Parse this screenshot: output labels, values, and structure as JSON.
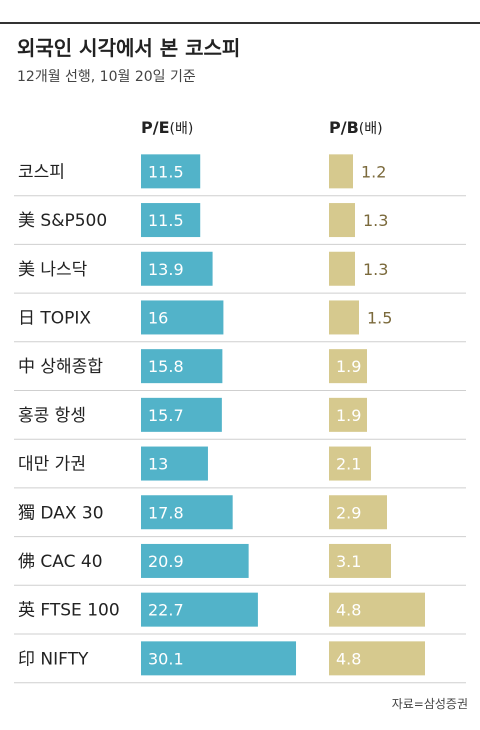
{
  "title": "외국인 시각에서 본 코스피",
  "subtitle": "12개월 선행, 10월 20일 기준",
  "source": "자료=삼성증권",
  "colors": {
    "pe": "#52b3c9",
    "pb": "#d6c98e",
    "pb_text": "#7b6a3c",
    "divider": "#cfcfcf"
  },
  "chart_data": {
    "type": "bar",
    "categories": [
      "코스피",
      "美 S&P500",
      "美 나스닥",
      "日 TOPIX",
      "中 상해종합",
      "홍콩 항셍",
      "대만 가권",
      "獨 DAX 30",
      "佛 CAC 40",
      "英 FTSE 100",
      "印 NIFTY"
    ],
    "series": [
      {
        "name": "P/E",
        "unit": "(배)",
        "values": [
          11.5,
          11.5,
          13.9,
          16,
          15.8,
          15.7,
          13,
          17.8,
          20.9,
          22.7,
          30.1
        ],
        "labels": [
          "11.5",
          "11.5",
          "13.9",
          "16",
          "15.8",
          "15.7",
          "13",
          "17.8",
          "20.9",
          "22.7",
          "30.1"
        ]
      },
      {
        "name": "P/B",
        "unit": "(배)",
        "values": [
          1.2,
          1.3,
          1.3,
          1.5,
          1.9,
          1.9,
          2.1,
          2.9,
          3.1,
          4.8,
          4.8
        ],
        "labels": [
          "1.2",
          "1.3",
          "1.3",
          "1.5",
          "1.9",
          "1.9",
          "2.1",
          "2.9",
          "3.1",
          "4.8",
          "4.8"
        ]
      }
    ]
  }
}
